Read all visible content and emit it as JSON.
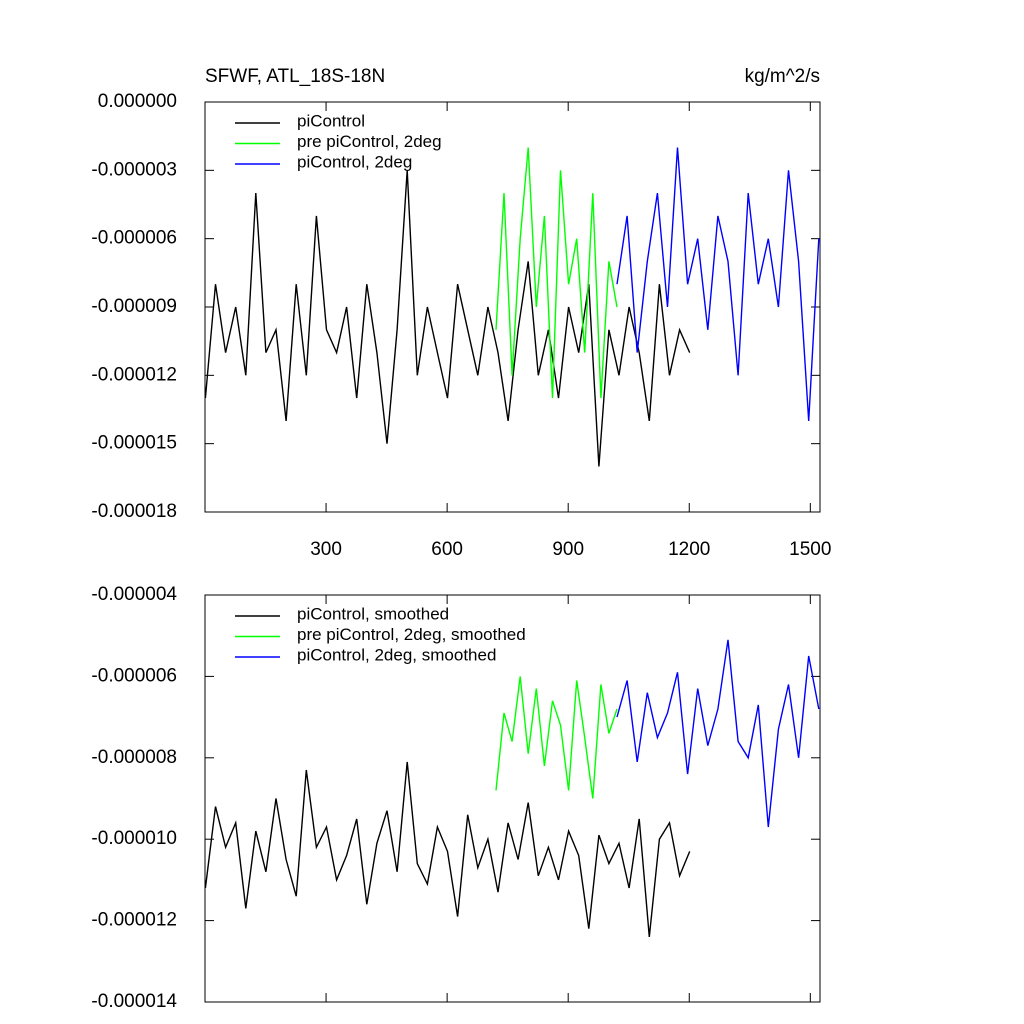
{
  "chart_data": [
    {
      "type": "line",
      "title": "SFWF, ATL_18S-18N",
      "units": "kg/m^2/s",
      "xlim": [
        0,
        1524
      ],
      "xticks": [
        300,
        600,
        900,
        1200,
        1500
      ],
      "ylim": [
        -1.8e-05,
        0
      ],
      "yticks": [
        {
          "value": 0,
          "label": "0.000000"
        },
        {
          "value": -3e-06,
          "label": "-0.000003"
        },
        {
          "value": -6e-06,
          "label": "-0.000006"
        },
        {
          "value": -9e-06,
          "label": "-0.000009"
        },
        {
          "value": -1.2e-05,
          "label": "-0.000012"
        },
        {
          "value": -1.5e-05,
          "label": "-0.000015"
        },
        {
          "value": -1.8e-05,
          "label": "-0.000018"
        }
      ],
      "legend": "upper left",
      "series": [
        {
          "name": "piControl",
          "color": "#000000",
          "x": [
            1,
            26,
            51,
            76,
            101,
            126,
            151,
            176,
            201,
            226,
            251,
            276,
            301,
            326,
            351,
            376,
            401,
            426,
            451,
            476,
            501,
            526,
            551,
            576,
            601,
            626,
            651,
            676,
            701,
            726,
            751,
            776,
            801,
            826,
            851,
            876,
            901,
            926,
            951,
            976,
            1001,
            1026,
            1051,
            1076,
            1101,
            1126,
            1151,
            1176,
            1201
          ],
          "values": [
            -1.3e-05,
            -8e-06,
            -1.1e-05,
            -9e-06,
            -1.2e-05,
            -4e-06,
            -1.1e-05,
            -1e-05,
            -1.4e-05,
            -8e-06,
            -1.2e-05,
            -5e-06,
            -1e-05,
            -1.1e-05,
            -9e-06,
            -1.3e-05,
            -8e-06,
            -1.1e-05,
            -1.5e-05,
            -1e-05,
            -3e-06,
            -1.2e-05,
            -9e-06,
            -1.1e-05,
            -1.3e-05,
            -8e-06,
            -1e-05,
            -1.2e-05,
            -9e-06,
            -1.1e-05,
            -1.4e-05,
            -1e-05,
            -7e-06,
            -1.2e-05,
            -1e-05,
            -1.3e-05,
            -9e-06,
            -1.1e-05,
            -8e-06,
            -1.6e-05,
            -1e-05,
            -1.2e-05,
            -9e-06,
            -1.1e-05,
            -1.4e-05,
            -8e-06,
            -1.2e-05,
            -1e-05,
            -1.1e-05
          ]
        },
        {
          "name": "pre piControl, 2deg",
          "color": "#00ff00",
          "x": [
            721,
            741,
            761,
            781,
            801,
            821,
            841,
            861,
            881,
            901,
            921,
            941,
            961,
            981,
            1001,
            1021
          ],
          "values": [
            -1e-05,
            -4e-06,
            -1.2e-05,
            -6e-06,
            -2e-06,
            -9e-06,
            -5e-06,
            -1.3e-05,
            -3e-06,
            -8e-06,
            -6e-06,
            -1.1e-05,
            -4e-06,
            -1.3e-05,
            -7e-06,
            -9e-06
          ]
        },
        {
          "name": "piControl, 2deg",
          "color": "#0000ff",
          "x": [
            1021,
            1046,
            1071,
            1096,
            1121,
            1146,
            1171,
            1196,
            1221,
            1246,
            1271,
            1296,
            1321,
            1346,
            1371,
            1396,
            1421,
            1446,
            1471,
            1496,
            1521
          ],
          "values": [
            -8e-06,
            -5e-06,
            -1.1e-05,
            -7e-06,
            -4e-06,
            -9e-06,
            -2e-06,
            -8e-06,
            -6e-06,
            -1e-05,
            -5e-06,
            -7e-06,
            -1.2e-05,
            -4e-06,
            -8e-06,
            -6e-06,
            -9e-06,
            -3e-06,
            -7e-06,
            -1.4e-05,
            -6e-06
          ]
        }
      ]
    },
    {
      "type": "line",
      "xlim": [
        0,
        1524
      ],
      "xticks": [
        300,
        600,
        900,
        1200,
        1500
      ],
      "xtick_labels": false,
      "ylim": [
        -1.4e-05,
        -4e-06
      ],
      "yticks": [
        {
          "value": -4e-06,
          "label": "-0.000004"
        },
        {
          "value": -6e-06,
          "label": "-0.000006"
        },
        {
          "value": -8e-06,
          "label": "-0.000008"
        },
        {
          "value": -1e-05,
          "label": "-0.000010"
        },
        {
          "value": -1.2e-05,
          "label": "-0.000012"
        },
        {
          "value": -1.4e-05,
          "label": "-0.000014"
        }
      ],
      "legend": "upper left",
      "series": [
        {
          "name": "piControl, smoothed",
          "color": "#000000",
          "x": [
            1,
            26,
            51,
            76,
            101,
            126,
            151,
            176,
            201,
            226,
            251,
            276,
            301,
            326,
            351,
            376,
            401,
            426,
            451,
            476,
            501,
            526,
            551,
            576,
            601,
            626,
            651,
            676,
            701,
            726,
            751,
            776,
            801,
            826,
            851,
            876,
            901,
            926,
            951,
            976,
            1001,
            1026,
            1051,
            1076,
            1101,
            1126,
            1151,
            1176,
            1201
          ],
          "values": [
            -1.12e-05,
            -9.2e-06,
            -1.02e-05,
            -9.6e-06,
            -1.17e-05,
            -9.8e-06,
            -1.08e-05,
            -9e-06,
            -1.05e-05,
            -1.14e-05,
            -8.3e-06,
            -1.02e-05,
            -9.7e-06,
            -1.1e-05,
            -1.04e-05,
            -9.5e-06,
            -1.16e-05,
            -1.01e-05,
            -9.3e-06,
            -1.08e-05,
            -8.1e-06,
            -1.06e-05,
            -1.11e-05,
            -9.7e-06,
            -1.03e-05,
            -1.19e-05,
            -9.4e-06,
            -1.07e-05,
            -1e-05,
            -1.13e-05,
            -9.6e-06,
            -1.05e-05,
            -9.1e-06,
            -1.09e-05,
            -1.02e-05,
            -1.1e-05,
            -9.8e-06,
            -1.04e-05,
            -1.22e-05,
            -9.9e-06,
            -1.06e-05,
            -1.01e-05,
            -1.12e-05,
            -9.5e-06,
            -1.24e-05,
            -1e-05,
            -9.6e-06,
            -1.09e-05,
            -1.03e-05
          ]
        },
        {
          "name": "pre piControl, 2deg, smoothed",
          "color": "#00ff00",
          "x": [
            721,
            741,
            761,
            781,
            801,
            821,
            841,
            861,
            881,
            901,
            921,
            941,
            961,
            981,
            1001,
            1021
          ],
          "values": [
            -8.8e-06,
            -6.9e-06,
            -7.6e-06,
            -6e-06,
            -7.9e-06,
            -6.3e-06,
            -8.2e-06,
            -6.6e-06,
            -7.2e-06,
            -8.8e-06,
            -6.1e-06,
            -7.5e-06,
            -9e-06,
            -6.2e-06,
            -7.4e-06,
            -6.8e-06
          ]
        },
        {
          "name": "piControl, 2deg, smoothed",
          "color": "#0000ff",
          "x": [
            1021,
            1046,
            1071,
            1096,
            1121,
            1146,
            1171,
            1196,
            1221,
            1246,
            1271,
            1296,
            1321,
            1346,
            1371,
            1396,
            1421,
            1446,
            1471,
            1496,
            1521
          ],
          "values": [
            -7e-06,
            -6.1e-06,
            -8.1e-06,
            -6.4e-06,
            -7.5e-06,
            -6.9e-06,
            -5.9e-06,
            -8.4e-06,
            -6.3e-06,
            -7.7e-06,
            -6.8e-06,
            -5.1e-06,
            -7.6e-06,
            -8e-06,
            -6.7e-06,
            -9.7e-06,
            -7.3e-06,
            -6.2e-06,
            -8e-06,
            -5.5e-06,
            -6.8e-06
          ]
        }
      ]
    }
  ]
}
